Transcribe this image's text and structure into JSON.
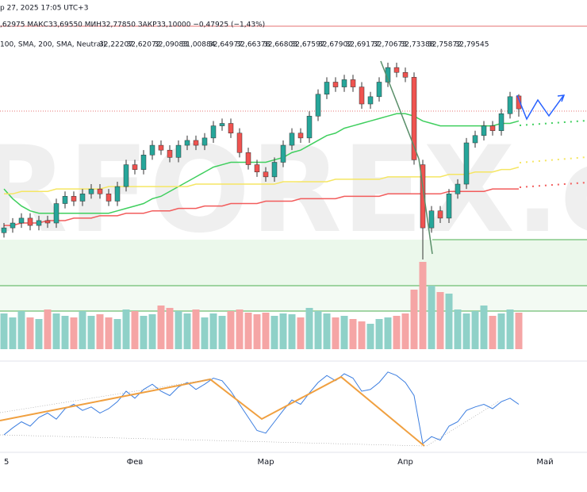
{
  "chart_data": {
    "type": "candlestick",
    "header": {
      "date": "р 27, 2025 17:05 UTC+3",
      "ohlc": ",62975 МАКС33,69550 МИН32,77850 ЗАКР33,10000 −0,47925 (−1,43%)",
      "indicators": "100, SMA, 200, SMA, Neutral)",
      "indicator_values": [
        {
          "text": "32,22207",
          "color": "#f23645"
        },
        {
          "text": "32,62072",
          "color": "#22ab94"
        },
        {
          "text": "32,09083",
          "color": "#d4b106"
        },
        {
          "text": "31,00884",
          "color": "#f23645"
        },
        {
          "text": "32,64977",
          "color": "#22ab94"
        },
        {
          "text": "32,66378",
          "color": "#22ab94"
        },
        {
          "text": "32,66803",
          "color": "#22ab94"
        },
        {
          "text": "32,67597",
          "color": "#22ab94"
        },
        {
          "text": "32,67902",
          "color": "#22ab94"
        },
        {
          "text": "32,69177",
          "color": "#22ab94"
        },
        {
          "text": "32,70673",
          "color": "#22ab94"
        },
        {
          "text": "32,73388",
          "color": "#22ab94"
        },
        {
          "text": "32,75872",
          "color": "#22ab94"
        },
        {
          "text": "32,79545",
          "color": "#22ab94"
        }
      ]
    },
    "watermark": "RFOREX.c",
    "categories": [
      "5",
      null,
      null,
      null,
      null,
      null,
      null,
      null,
      null,
      null,
      null,
      null,
      null,
      null,
      null,
      "Фев",
      null,
      null,
      null,
      null,
      null,
      null,
      null,
      null,
      null,
      null,
      null,
      null,
      null,
      null,
      "Мар",
      null,
      null,
      null,
      null,
      null,
      null,
      null,
      null,
      null,
      null,
      null,
      null,
      null,
      null,
      null,
      "Апр",
      null,
      null,
      null,
      null,
      null,
      null,
      null,
      null,
      null,
      null,
      null,
      null,
      null,
      null,
      null,
      "Май",
      null
    ],
    "open": [
      28.0,
      28.2,
      28.4,
      28.6,
      28.3,
      28.5,
      28.4,
      29.2,
      29.5,
      29.3,
      29.6,
      29.8,
      29.6,
      29.3,
      29.9,
      30.8,
      30.6,
      31.2,
      31.6,
      31.4,
      31.1,
      31.6,
      31.8,
      31.6,
      31.9,
      32.4,
      32.5,
      32.1,
      31.3,
      30.8,
      30.5,
      30.3,
      30.9,
      31.6,
      32.1,
      31.9,
      32.8,
      33.7,
      34.2,
      34.0,
      34.3,
      34.0,
      33.3,
      33.6,
      34.2,
      34.8,
      34.6,
      34.4,
      30.8,
      28.2,
      28.9,
      28.6,
      29.6,
      30.0,
      31.7,
      32.0,
      32.4,
      32.2,
      32.9,
      33.63,
      null,
      null,
      null,
      null
    ],
    "high": [
      28.4,
      28.6,
      28.8,
      28.8,
      28.7,
      28.7,
      29.4,
      29.7,
      29.7,
      29.8,
      30.0,
      30.0,
      29.8,
      30.1,
      31.0,
      31.0,
      31.4,
      31.8,
      31.8,
      31.6,
      31.8,
      32.0,
      32.0,
      32.1,
      32.6,
      32.7,
      32.7,
      32.3,
      31.5,
      31.0,
      30.7,
      31.1,
      31.8,
      32.3,
      32.3,
      33.0,
      33.9,
      34.4,
      34.4,
      34.5,
      34.5,
      34.2,
      33.8,
      34.4,
      35.0,
      35.0,
      34.8,
      34.6,
      31.0,
      29.1,
      29.1,
      29.8,
      30.2,
      31.9,
      32.2,
      32.6,
      32.6,
      33.1,
      33.8,
      33.7,
      null,
      null,
      null,
      null
    ],
    "low": [
      27.8,
      28.0,
      28.2,
      28.1,
      28.1,
      28.2,
      28.2,
      29.0,
      29.1,
      29.1,
      29.4,
      29.4,
      29.1,
      29.1,
      29.7,
      30.4,
      30.4,
      31.0,
      31.2,
      30.9,
      30.9,
      31.4,
      31.4,
      31.4,
      31.7,
      32.2,
      31.9,
      31.1,
      30.6,
      30.3,
      30.1,
      30.1,
      30.7,
      31.4,
      31.7,
      31.7,
      32.6,
      33.5,
      33.8,
      33.8,
      33.8,
      33.1,
      33.1,
      33.4,
      34.0,
      34.4,
      34.2,
      30.8,
      26.9,
      28.0,
      28.4,
      28.4,
      29.4,
      29.8,
      31.5,
      31.8,
      32.0,
      32.0,
      32.7,
      32.78,
      null,
      null,
      null,
      null
    ],
    "close": [
      28.2,
      28.4,
      28.6,
      28.3,
      28.5,
      28.4,
      29.2,
      29.5,
      29.3,
      29.6,
      29.8,
      29.6,
      29.3,
      29.9,
      30.8,
      30.6,
      31.2,
      31.6,
      31.4,
      31.1,
      31.6,
      31.8,
      31.6,
      31.9,
      32.4,
      32.5,
      32.1,
      31.3,
      30.8,
      30.5,
      30.3,
      30.9,
      31.6,
      32.1,
      31.9,
      32.8,
      33.7,
      34.2,
      34.0,
      34.3,
      34.0,
      33.3,
      33.6,
      34.2,
      34.8,
      34.6,
      34.4,
      31.0,
      28.2,
      28.9,
      28.6,
      29.6,
      30.0,
      31.7,
      32.0,
      32.4,
      32.2,
      32.9,
      33.6,
      33.1,
      null,
      null,
      null,
      null
    ],
    "up_color": "#26a69a",
    "down_color": "#ef5350",
    "ylim": [
      26.8,
      36.6
    ],
    "moving_averages": [
      {
        "color": "#3fcf5e",
        "values": [
          29.8,
          29.4,
          29.1,
          28.9,
          28.8,
          28.8,
          28.8,
          28.8,
          28.8,
          28.8,
          28.8,
          28.8,
          28.8,
          28.9,
          29.0,
          29.1,
          29.2,
          29.4,
          29.5,
          29.7,
          29.9,
          30.1,
          30.3,
          30.5,
          30.7,
          30.8,
          30.9,
          30.9,
          30.9,
          30.9,
          30.9,
          31.0,
          31.1,
          31.3,
          31.4,
          31.6,
          31.8,
          32.0,
          32.1,
          32.3,
          32.4,
          32.5,
          32.6,
          32.7,
          32.8,
          32.9,
          32.9,
          32.8,
          32.6,
          32.5,
          32.4,
          32.4,
          32.4,
          32.4,
          32.4,
          32.4,
          32.4,
          32.5,
          32.5,
          32.6,
          null,
          null,
          null,
          null
        ]
      },
      {
        "color": "#f5e663",
        "values": [
          29.6,
          29.6,
          29.7,
          29.7,
          29.7,
          29.7,
          29.8,
          29.8,
          29.8,
          29.8,
          29.8,
          29.8,
          29.9,
          29.9,
          29.9,
          29.9,
          29.9,
          29.9,
          29.9,
          29.9,
          29.9,
          29.9,
          30.0,
          30.0,
          30.0,
          30.0,
          30.0,
          30.0,
          30.0,
          30.0,
          30.0,
          30.0,
          30.1,
          30.1,
          30.1,
          30.1,
          30.1,
          30.1,
          30.2,
          30.2,
          30.2,
          30.2,
          30.2,
          30.2,
          30.3,
          30.3,
          30.3,
          30.3,
          30.3,
          30.3,
          30.3,
          30.4,
          30.4,
          30.4,
          30.5,
          30.5,
          30.5,
          30.6,
          30.6,
          30.7,
          null,
          null,
          null,
          null
        ]
      },
      {
        "color": "#f25c5c",
        "values": [
          28.3,
          28.3,
          28.4,
          28.4,
          28.4,
          28.5,
          28.5,
          28.5,
          28.6,
          28.6,
          28.6,
          28.7,
          28.7,
          28.7,
          28.8,
          28.8,
          28.8,
          28.9,
          28.9,
          28.9,
          29.0,
          29.0,
          29.0,
          29.1,
          29.1,
          29.1,
          29.2,
          29.2,
          29.2,
          29.2,
          29.3,
          29.3,
          29.3,
          29.3,
          29.4,
          29.4,
          29.4,
          29.4,
          29.4,
          29.5,
          29.5,
          29.5,
          29.5,
          29.5,
          29.6,
          29.6,
          29.6,
          29.6,
          29.6,
          29.6,
          29.6,
          29.7,
          29.7,
          29.7,
          29.7,
          29.7,
          29.8,
          29.8,
          29.8,
          29.8,
          null,
          null,
          null,
          null
        ]
      }
    ],
    "volume": [
      45,
      40,
      48,
      40,
      38,
      50,
      45,
      42,
      40,
      48,
      42,
      44,
      40,
      38,
      50,
      48,
      42,
      44,
      55,
      52,
      48,
      45,
      50,
      40,
      45,
      42,
      48,
      50,
      46,
      44,
      46,
      42,
      45,
      44,
      40,
      52,
      48,
      45,
      40,
      42,
      38,
      35,
      32,
      38,
      40,
      42,
      45,
      75,
      110,
      80,
      72,
      70,
      50,
      45,
      48,
      55,
      42,
      45,
      50,
      46,
      null,
      null,
      null,
      null
    ],
    "volume_ylim": [
      0,
      120
    ],
    "oscillator": {
      "color": "#3c7ee0",
      "ylim": [
        0,
        100
      ],
      "values": [
        20,
        28,
        35,
        30,
        40,
        45,
        38,
        50,
        55,
        48,
        52,
        45,
        50,
        58,
        70,
        62,
        72,
        78,
        70,
        65,
        75,
        80,
        72,
        78,
        85,
        82,
        70,
        55,
        40,
        25,
        22,
        35,
        48,
        60,
        55,
        68,
        80,
        88,
        82,
        90,
        85,
        70,
        72,
        80,
        92,
        88,
        80,
        65,
        10,
        18,
        14,
        30,
        35,
        48,
        52,
        55,
        50,
        58,
        62,
        55,
        null,
        null,
        null,
        null
      ]
    }
  }
}
